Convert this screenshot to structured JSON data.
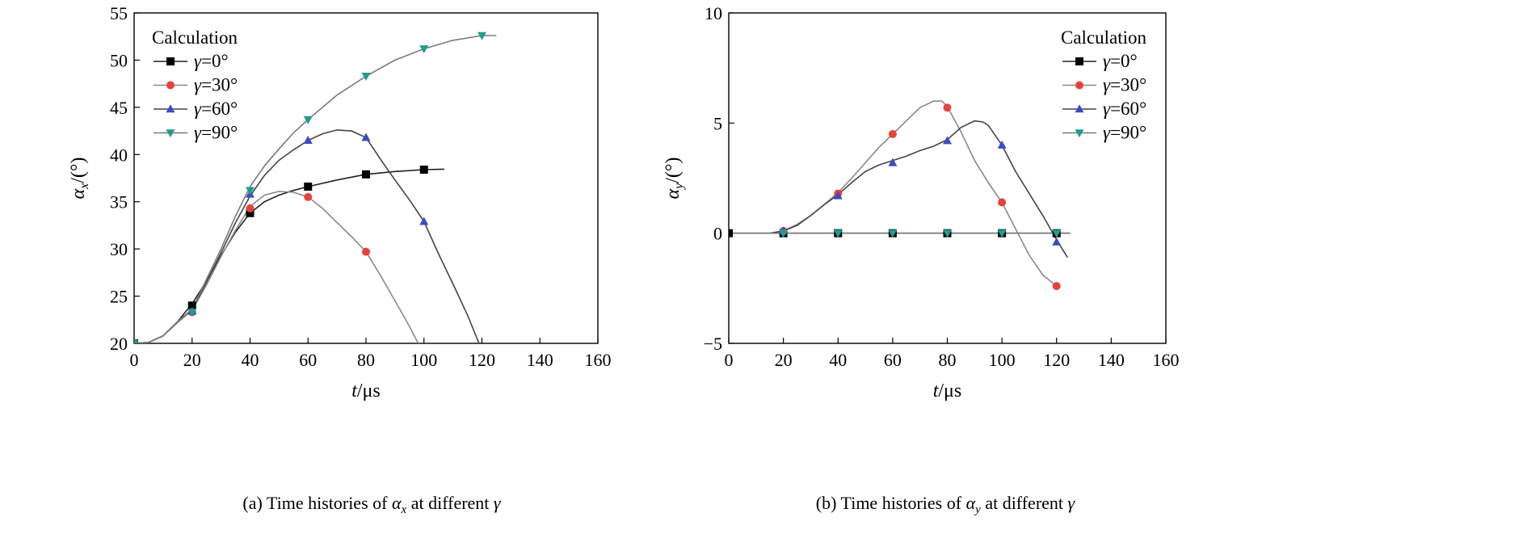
{
  "chart_data": [
    {
      "type": "line",
      "caption_prefix": "(a) Time histories of ",
      "caption_symbol": "α",
      "caption_sub": "x",
      "caption_suffix": " at different ",
      "caption_gamma": "γ",
      "xlabel_var": "t",
      "xlabel_unit": "/μs",
      "ylabel_var": "α",
      "ylabel_sub": "x",
      "ylabel_unit": "/(°)",
      "xlim": [
        0,
        160
      ],
      "ylim": [
        20,
        55
      ],
      "xticks": [
        "0",
        "20",
        "40",
        "60",
        "80",
        "100",
        "120",
        "140",
        "160"
      ],
      "yticks": [
        "20",
        "25",
        "30",
        "35",
        "40",
        "45",
        "50",
        "55"
      ],
      "legend_title": "Calculation",
      "legend_position": "top-left",
      "series": [
        {
          "name_var": "γ",
          "name_val": "=0°",
          "color": "#2b2b2b",
          "line_color": "#222222",
          "marker": "square",
          "marker_color": "#000000",
          "curve": [
            [
              0,
              20
            ],
            [
              5,
              20.1
            ],
            [
              10,
              20.8
            ],
            [
              15,
              22.3
            ],
            [
              20,
              24.2
            ],
            [
              25,
              26.6
            ],
            [
              30,
              29.3
            ],
            [
              35,
              31.8
            ],
            [
              40,
              33.8
            ],
            [
              45,
              35.0
            ],
            [
              50,
              35.7
            ],
            [
              55,
              36.2
            ],
            [
              60,
              36.6
            ],
            [
              70,
              37.3
            ],
            [
              80,
              37.9
            ],
            [
              90,
              38.2
            ],
            [
              100,
              38.4
            ],
            [
              107,
              38.45
            ]
          ],
          "markers": [
            [
              0,
              20
            ],
            [
              20,
              24.0
            ],
            [
              40,
              33.8
            ],
            [
              60,
              36.6
            ],
            [
              80,
              37.9
            ],
            [
              100,
              38.4
            ]
          ]
        },
        {
          "name_var": "γ",
          "name_val": "=30°",
          "color": "#8a8a8a",
          "line_color": "#8a8a8a",
          "marker": "circle",
          "marker_color": "#e8413c",
          "curve": [
            [
              0,
              20
            ],
            [
              5,
              20.1
            ],
            [
              10,
              20.8
            ],
            [
              15,
              22.2
            ],
            [
              20,
              23.5
            ],
            [
              25,
              26.2
            ],
            [
              30,
              29.2
            ],
            [
              35,
              32.0
            ],
            [
              40,
              34.5
            ],
            [
              45,
              35.7
            ],
            [
              50,
              36.1
            ],
            [
              55,
              36.0
            ],
            [
              60,
              35.5
            ],
            [
              65,
              34.3
            ],
            [
              70,
              32.8
            ],
            [
              75,
              31.3
            ],
            [
              80,
              29.7
            ],
            [
              85,
              27.2
            ],
            [
              90,
              24.5
            ],
            [
              95,
              21.8
            ],
            [
              98,
              20
            ]
          ],
          "markers": [
            [
              0,
              20
            ],
            [
              20,
              23.3
            ],
            [
              40,
              34.3
            ],
            [
              60,
              35.5
            ],
            [
              80,
              29.7
            ]
          ]
        },
        {
          "name_var": "γ",
          "name_val": "=60°",
          "color": "#3b3b7a",
          "line_color": "#444444",
          "marker": "triangle-up",
          "marker_color": "#3b4cc0",
          "curve": [
            [
              0,
              20
            ],
            [
              5,
              20.1
            ],
            [
              10,
              20.8
            ],
            [
              15,
              22.3
            ],
            [
              20,
              23.6
            ],
            [
              25,
              26.5
            ],
            [
              30,
              29.6
            ],
            [
              35,
              32.8
            ],
            [
              40,
              35.6
            ],
            [
              45,
              37.8
            ],
            [
              50,
              39.4
            ],
            [
              55,
              40.5
            ],
            [
              60,
              41.5
            ],
            [
              65,
              42.2
            ],
            [
              70,
              42.6
            ],
            [
              75,
              42.5
            ],
            [
              80,
              41.8
            ],
            [
              85,
              39.5
            ],
            [
              90,
              37.3
            ],
            [
              95,
              35.2
            ],
            [
              100,
              32.9
            ],
            [
              105,
              29.5
            ],
            [
              110,
              26.3
            ],
            [
              115,
              23.0
            ],
            [
              119,
              20
            ]
          ],
          "markers": [
            [
              0,
              20
            ],
            [
              20,
              23.4
            ],
            [
              40,
              35.8
            ],
            [
              60,
              41.5
            ],
            [
              80,
              41.8
            ],
            [
              100,
              32.9
            ]
          ]
        },
        {
          "name_var": "γ",
          "name_val": "=90°",
          "color": "#6e6e6e",
          "line_color": "#7a7a7a",
          "marker": "triangle-down",
          "marker_color": "#1e9e8c",
          "curve": [
            [
              0,
              20
            ],
            [
              5,
              20.1
            ],
            [
              10,
              20.8
            ],
            [
              15,
              22.3
            ],
            [
              20,
              23.6
            ],
            [
              25,
              26.8
            ],
            [
              30,
              30.0
            ],
            [
              35,
              33.5
            ],
            [
              40,
              36.6
            ],
            [
              45,
              38.8
            ],
            [
              50,
              40.6
            ],
            [
              55,
              42.3
            ],
            [
              60,
              43.7
            ],
            [
              70,
              46.3
            ],
            [
              80,
              48.3
            ],
            [
              90,
              50.0
            ],
            [
              100,
              51.2
            ],
            [
              110,
              52.1
            ],
            [
              120,
              52.6
            ],
            [
              125,
              52.6
            ]
          ],
          "markers": [
            [
              0,
              20
            ],
            [
              20,
              23.3
            ],
            [
              40,
              36.2
            ],
            [
              60,
              43.7
            ],
            [
              80,
              48.3
            ],
            [
              100,
              51.2
            ],
            [
              120,
              52.6
            ]
          ]
        }
      ]
    },
    {
      "type": "line",
      "caption_prefix": "(b) Time histories of ",
      "caption_symbol": "α",
      "caption_sub": "y",
      "caption_suffix": " at different ",
      "caption_gamma": "γ",
      "xlabel_var": "t",
      "xlabel_unit": "/μs",
      "ylabel_var": "α",
      "ylabel_sub": "y",
      "ylabel_unit": "/(°)",
      "xlim": [
        0,
        160
      ],
      "ylim": [
        -5,
        10
      ],
      "xticks": [
        "0",
        "20",
        "40",
        "60",
        "80",
        "100",
        "120",
        "140",
        "160"
      ],
      "yticks": [
        "−5",
        "0",
        "5",
        "10"
      ],
      "legend_title": "Calculation",
      "legend_position": "top-right",
      "series": [
        {
          "name_var": "γ",
          "name_val": "=0°",
          "color": "#2b2b2b",
          "line_color": "#222222",
          "marker": "square",
          "marker_color": "#000000",
          "curve": [
            [
              0,
              0
            ],
            [
              125,
              0
            ]
          ],
          "markers": [
            [
              0,
              0
            ],
            [
              20,
              0
            ],
            [
              40,
              0
            ],
            [
              60,
              0
            ],
            [
              80,
              0
            ],
            [
              100,
              0
            ],
            [
              120,
              0
            ]
          ]
        },
        {
          "name_var": "γ",
          "name_val": "=30°",
          "color": "#8a8a8a",
          "line_color": "#8a8a8a",
          "marker": "circle",
          "marker_color": "#e8413c",
          "curve": [
            [
              15,
              0
            ],
            [
              20,
              0.1
            ],
            [
              25,
              0.4
            ],
            [
              30,
              0.8
            ],
            [
              35,
              1.3
            ],
            [
              40,
              1.85
            ],
            [
              45,
              2.5
            ],
            [
              50,
              3.2
            ],
            [
              55,
              3.9
            ],
            [
              60,
              4.5
            ],
            [
              65,
              5.1
            ],
            [
              70,
              5.7
            ],
            [
              75,
              6.0
            ],
            [
              78,
              6.0
            ],
            [
              80,
              5.75
            ],
            [
              85,
              4.6
            ],
            [
              90,
              3.3
            ],
            [
              95,
              2.3
            ],
            [
              100,
              1.4
            ],
            [
              105,
              0.2
            ],
            [
              110,
              -1.0
            ],
            [
              115,
              -1.9
            ],
            [
              120,
              -2.4
            ]
          ],
          "markers": [
            [
              20,
              0.1
            ],
            [
              40,
              1.8
            ],
            [
              60,
              4.5
            ],
            [
              80,
              5.7
            ],
            [
              100,
              1.4
            ],
            [
              120,
              -2.4
            ]
          ]
        },
        {
          "name_var": "γ",
          "name_val": "=60°",
          "color": "#3b3b7a",
          "line_color": "#444444",
          "marker": "triangle-up",
          "marker_color": "#3b4cc0",
          "curve": [
            [
              15,
              0
            ],
            [
              20,
              0.1
            ],
            [
              25,
              0.35
            ],
            [
              30,
              0.8
            ],
            [
              35,
              1.3
            ],
            [
              40,
              1.75
            ],
            [
              45,
              2.3
            ],
            [
              50,
              2.8
            ],
            [
              55,
              3.1
            ],
            [
              60,
              3.3
            ],
            [
              65,
              3.5
            ],
            [
              70,
              3.75
            ],
            [
              75,
              3.95
            ],
            [
              80,
              4.25
            ],
            [
              85,
              4.8
            ],
            [
              90,
              5.1
            ],
            [
              93,
              5.05
            ],
            [
              95,
              4.9
            ],
            [
              100,
              4.0
            ],
            [
              105,
              2.8
            ],
            [
              110,
              1.8
            ],
            [
              115,
              0.8
            ],
            [
              120,
              -0.3
            ],
            [
              124,
              -1.1
            ]
          ],
          "markers": [
            [
              20,
              0.1
            ],
            [
              40,
              1.7
            ],
            [
              60,
              3.2
            ],
            [
              80,
              4.2
            ],
            [
              100,
              4.0
            ],
            [
              120,
              -0.4
            ]
          ]
        },
        {
          "name_var": "γ",
          "name_val": "=90°",
          "color": "#6e6e6e",
          "line_color": "#7a7a7a",
          "marker": "triangle-down",
          "marker_color": "#1e9e8c",
          "curve": [
            [
              0,
              0
            ],
            [
              125,
              0
            ]
          ],
          "markers": [
            [
              20,
              0
            ],
            [
              40,
              0
            ],
            [
              60,
              0
            ],
            [
              80,
              0
            ],
            [
              100,
              0
            ],
            [
              120,
              0
            ]
          ]
        }
      ]
    }
  ]
}
